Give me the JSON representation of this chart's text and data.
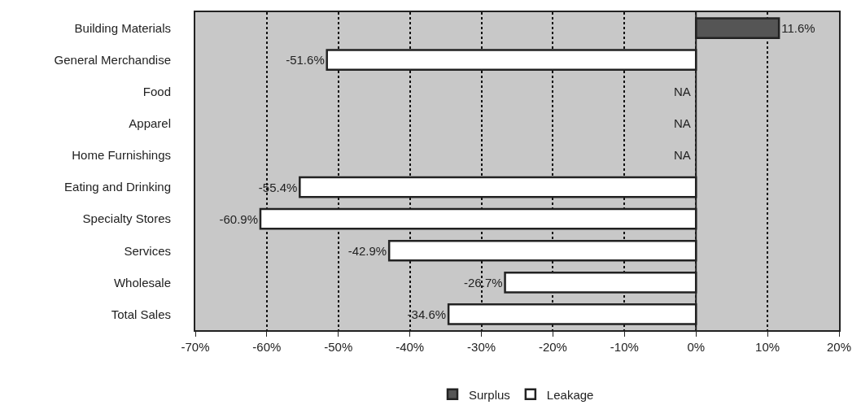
{
  "chart_data": {
    "type": "bar",
    "orientation": "horizontal",
    "stacked": true,
    "categories": [
      "Building Materials",
      "General Merchandise",
      "Food",
      "Apparel",
      "Home Furnishings",
      "Eating and Drinking",
      "Specialty Stores",
      "Services",
      "Wholesale",
      "Total Sales"
    ],
    "series": [
      {
        "name": "Surplus",
        "color": "#555555",
        "values": [
          11.6,
          null,
          null,
          null,
          null,
          null,
          null,
          null,
          null,
          null
        ],
        "value_labels": [
          "11.6%",
          null,
          null,
          null,
          null,
          null,
          null,
          null,
          null,
          null
        ]
      },
      {
        "name": "Leakage",
        "color": "#ffffff",
        "values": [
          null,
          -51.6,
          null,
          null,
          null,
          -55.4,
          -60.9,
          -42.9,
          -26.7,
          -34.6
        ],
        "value_labels": [
          null,
          "-51.6%",
          "NA",
          "NA",
          "NA",
          "-55.4%",
          "-60.9%",
          "-42.9%",
          "-26.7%",
          "-34.6%"
        ]
      }
    ],
    "xlim": [
      -70,
      20
    ],
    "xticks": [
      {
        "value": -70,
        "label": "-70%"
      },
      {
        "value": -60,
        "label": "-60%"
      },
      {
        "value": -50,
        "label": "-50%"
      },
      {
        "value": -40,
        "label": "-40%"
      },
      {
        "value": -30,
        "label": "-30%"
      },
      {
        "value": -20,
        "label": "-20%"
      },
      {
        "value": -10,
        "label": "-10%"
      },
      {
        "value": 0,
        "label": "0%"
      },
      {
        "value": 10,
        "label": "10%"
      },
      {
        "value": 20,
        "label": "20%"
      }
    ],
    "grid": "x",
    "legend": "bottom"
  }
}
